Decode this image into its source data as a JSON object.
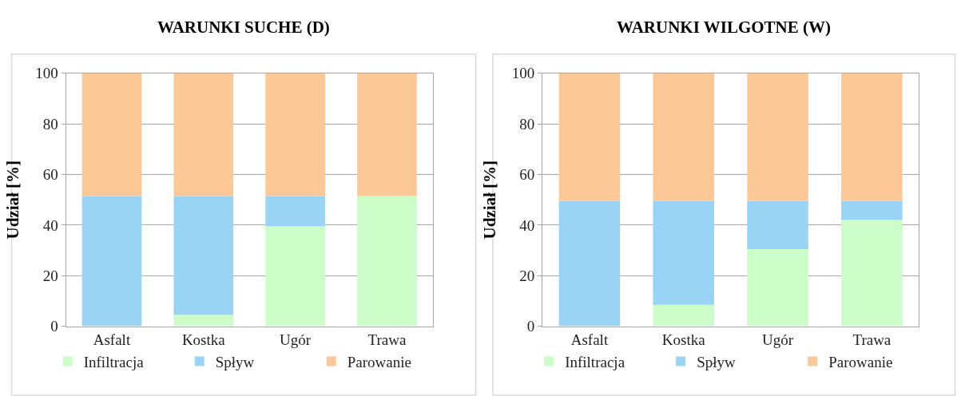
{
  "chart_data": [
    {
      "type": "bar",
      "title": "WARUNKI SUCHE (D)",
      "ylabel": "Udział [%]",
      "categories": [
        "Asfalt",
        "Kostka",
        "Ugór",
        "Trawa"
      ],
      "stacked": true,
      "ylim": [
        0,
        100
      ],
      "yticks": [
        0,
        20,
        40,
        60,
        80,
        100
      ],
      "grid": "y",
      "legend": "bottom",
      "series": [
        {
          "name": "Infiltracja",
          "color": "#ccfcc8",
          "values": [
            0,
            4.5,
            39.5,
            51.5
          ]
        },
        {
          "name": "Spływ",
          "color": "#99d3f5",
          "values": [
            51.5,
            47,
            12,
            0
          ]
        },
        {
          "name": "Parowanie",
          "color": "#fdc897",
          "values": [
            48.5,
            48.5,
            48.5,
            48.5
          ]
        }
      ]
    },
    {
      "type": "bar",
      "title": "WARUNKI WILGOTNE (W)",
      "ylabel": "Udział [%]",
      "categories": [
        "Asfalt",
        "Kostka",
        "Ugór",
        "Trawa"
      ],
      "stacked": true,
      "ylim": [
        0,
        100
      ],
      "yticks": [
        0,
        20,
        40,
        60,
        80,
        100
      ],
      "grid": "y",
      "legend": "bottom",
      "series": [
        {
          "name": "Infiltracja",
          "color": "#ccfcc8",
          "values": [
            0,
            8.5,
            30.5,
            42
          ]
        },
        {
          "name": "Spływ",
          "color": "#99d3f5",
          "values": [
            49.5,
            41,
            19,
            7.5
          ]
        },
        {
          "name": "Parowanie",
          "color": "#fdc897",
          "values": [
            50.5,
            50.5,
            50.5,
            50.5
          ]
        }
      ]
    }
  ]
}
